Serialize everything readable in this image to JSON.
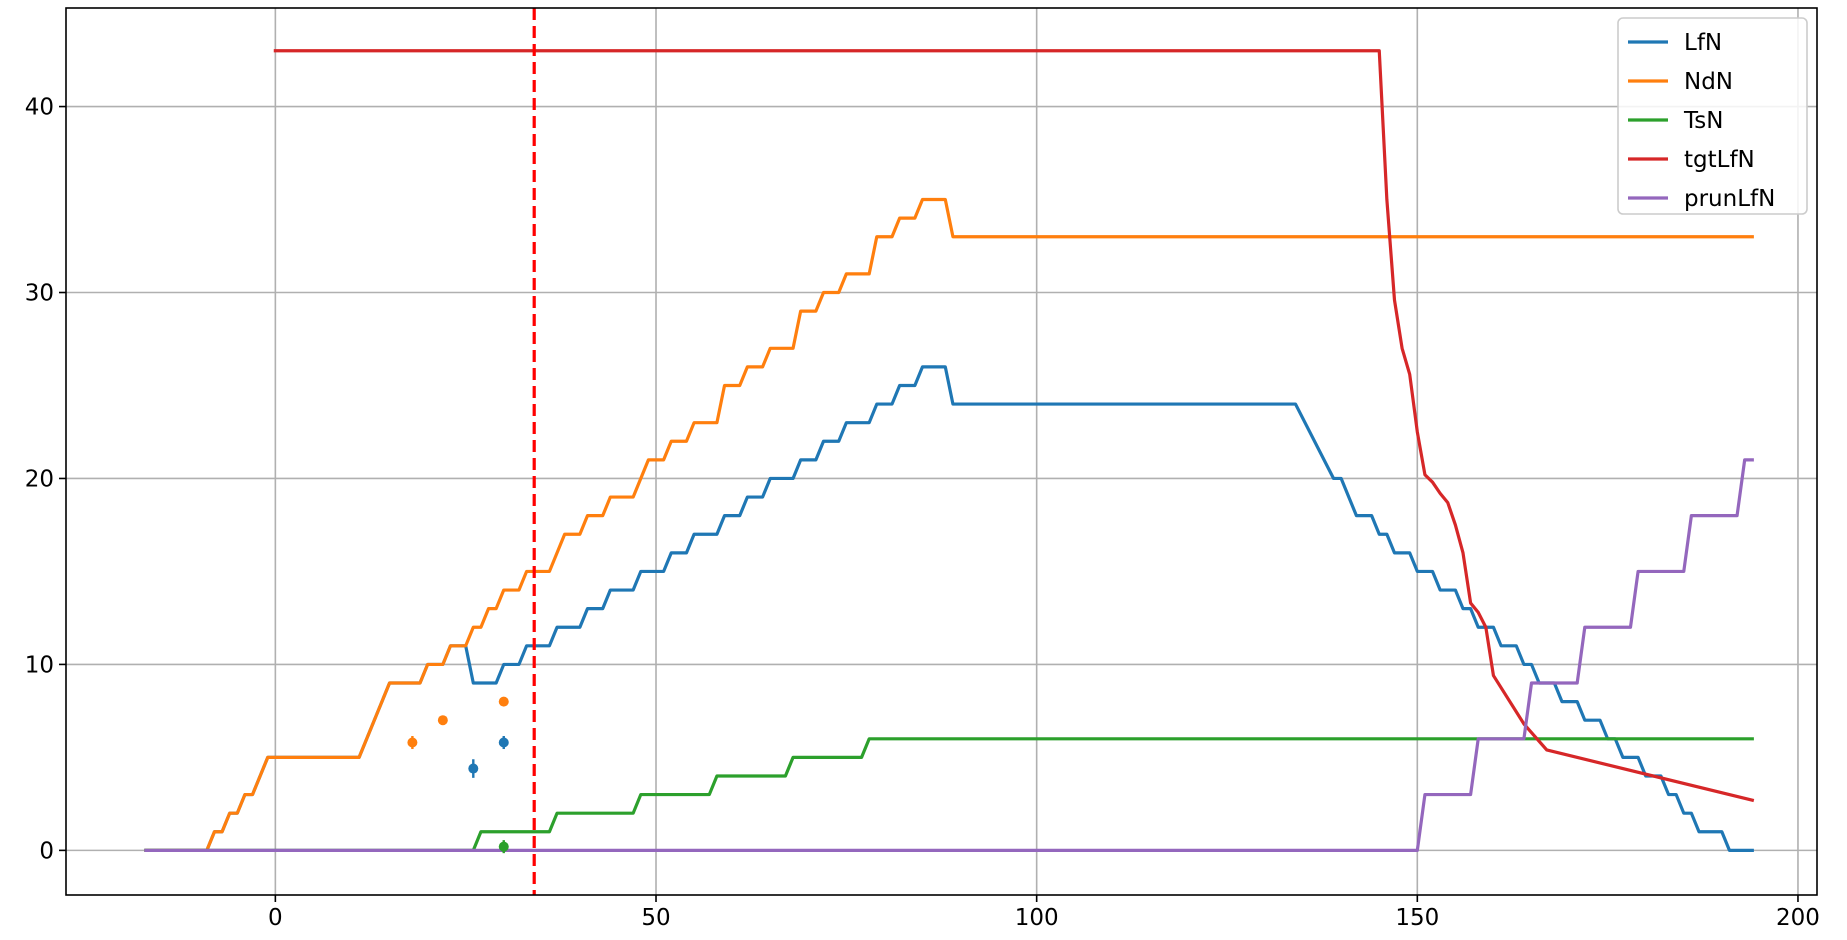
{
  "chart_data": {
    "type": "line",
    "title": "",
    "xlabel": "",
    "ylabel": "",
    "xlim": [
      -27.5,
      202.5
    ],
    "ylim": [
      -2.4,
      45.3
    ],
    "xticks": [
      0,
      50,
      100,
      150,
      200
    ],
    "yticks": [
      0,
      10,
      20,
      30,
      40
    ],
    "grid": true,
    "legend_position": "top-right",
    "vline": {
      "x": 34,
      "color": "#ff0000",
      "style": "dashed"
    },
    "series": [
      {
        "name": "LfN",
        "color": "#1f77b4",
        "points": [
          [
            -17,
            0
          ],
          [
            -9,
            0
          ],
          [
            -8,
            1
          ],
          [
            -7,
            1
          ],
          [
            -6,
            2
          ],
          [
            -5,
            2
          ],
          [
            -4,
            3
          ],
          [
            -3,
            3
          ],
          [
            -1,
            5
          ],
          [
            11,
            5
          ],
          [
            15,
            9
          ],
          [
            19,
            9
          ],
          [
            20,
            10
          ],
          [
            22,
            10
          ],
          [
            23,
            11
          ],
          [
            25,
            11
          ],
          [
            26,
            9
          ],
          [
            29,
            9
          ],
          [
            30,
            10
          ],
          [
            32,
            10
          ],
          [
            33,
            11
          ],
          [
            36,
            11
          ],
          [
            37,
            12
          ],
          [
            40,
            12
          ],
          [
            41,
            13
          ],
          [
            43,
            13
          ],
          [
            44,
            14
          ],
          [
            47,
            14
          ],
          [
            48,
            15
          ],
          [
            51,
            15
          ],
          [
            52,
            16
          ],
          [
            54,
            16
          ],
          [
            55,
            17
          ],
          [
            58,
            17
          ],
          [
            59,
            18
          ],
          [
            61,
            18
          ],
          [
            62,
            19
          ],
          [
            64,
            19
          ],
          [
            65,
            20
          ],
          [
            68,
            20
          ],
          [
            69,
            21
          ],
          [
            71,
            21
          ],
          [
            72,
            22
          ],
          [
            74,
            22
          ],
          [
            75,
            23
          ],
          [
            78,
            23
          ],
          [
            79,
            24
          ],
          [
            81,
            24
          ],
          [
            82,
            25
          ],
          [
            84,
            25
          ],
          [
            85,
            26
          ],
          [
            88,
            26
          ],
          [
            89,
            24
          ],
          [
            134,
            24
          ],
          [
            139,
            20
          ],
          [
            140,
            20
          ],
          [
            142,
            18
          ],
          [
            144,
            18
          ],
          [
            145,
            17
          ],
          [
            146,
            17
          ],
          [
            147,
            16
          ],
          [
            149,
            16
          ],
          [
            150,
            15
          ],
          [
            152,
            15
          ],
          [
            153,
            14
          ],
          [
            155,
            14
          ],
          [
            156,
            13
          ],
          [
            157,
            13
          ],
          [
            158,
            12
          ],
          [
            160,
            12
          ],
          [
            161,
            11
          ],
          [
            163,
            11
          ],
          [
            164,
            10
          ],
          [
            165,
            10
          ],
          [
            166,
            9
          ],
          [
            168,
            9
          ],
          [
            169,
            8
          ],
          [
            171,
            8
          ],
          [
            172,
            7
          ],
          [
            174,
            7
          ],
          [
            175,
            6
          ],
          [
            176,
            6
          ],
          [
            177,
            5
          ],
          [
            179,
            5
          ],
          [
            180,
            4
          ],
          [
            182,
            4
          ],
          [
            183,
            3
          ],
          [
            184,
            3
          ],
          [
            185,
            2
          ],
          [
            186,
            2
          ],
          [
            187,
            1
          ],
          [
            190,
            1
          ],
          [
            191,
            0
          ],
          [
            194,
            0
          ]
        ]
      },
      {
        "name": "NdN",
        "color": "#ff7f0e",
        "points": [
          [
            -17,
            0
          ],
          [
            -9,
            0
          ],
          [
            -8,
            1
          ],
          [
            -7,
            1
          ],
          [
            -6,
            2
          ],
          [
            -5,
            2
          ],
          [
            -4,
            3
          ],
          [
            -3,
            3
          ],
          [
            -1,
            5
          ],
          [
            11,
            5
          ],
          [
            15,
            9
          ],
          [
            19,
            9
          ],
          [
            20,
            10
          ],
          [
            22,
            10
          ],
          [
            23,
            11
          ],
          [
            25,
            11
          ],
          [
            26,
            12
          ],
          [
            27,
            12
          ],
          [
            28,
            13
          ],
          [
            29,
            13
          ],
          [
            30,
            14
          ],
          [
            32,
            14
          ],
          [
            33,
            15
          ],
          [
            36,
            15
          ],
          [
            38,
            17
          ],
          [
            40,
            17
          ],
          [
            41,
            18
          ],
          [
            43,
            18
          ],
          [
            44,
            19
          ],
          [
            47,
            19
          ],
          [
            49,
            21
          ],
          [
            51,
            21
          ],
          [
            52,
            22
          ],
          [
            54,
            22
          ],
          [
            55,
            23
          ],
          [
            58,
            23
          ],
          [
            59,
            25
          ],
          [
            61,
            25
          ],
          [
            62,
            26
          ],
          [
            64,
            26
          ],
          [
            65,
            27
          ],
          [
            68,
            27
          ],
          [
            69,
            29
          ],
          [
            71,
            29
          ],
          [
            72,
            30
          ],
          [
            74,
            30
          ],
          [
            75,
            31
          ],
          [
            78,
            31
          ],
          [
            79,
            33
          ],
          [
            81,
            33
          ],
          [
            82,
            34
          ],
          [
            84,
            34
          ],
          [
            85,
            35
          ],
          [
            88,
            35
          ],
          [
            89,
            33
          ],
          [
            194,
            33
          ]
        ]
      },
      {
        "name": "TsN",
        "color": "#2ca02c",
        "points": [
          [
            -17,
            0
          ],
          [
            26,
            0
          ],
          [
            27,
            1
          ],
          [
            36,
            1
          ],
          [
            37,
            2
          ],
          [
            47,
            2
          ],
          [
            48,
            3
          ],
          [
            57,
            3
          ],
          [
            58,
            4
          ],
          [
            67,
            4
          ],
          [
            68,
            5
          ],
          [
            77,
            5
          ],
          [
            78,
            6
          ],
          [
            194,
            6
          ]
        ]
      },
      {
        "name": "tgtLfN",
        "color": "#d62728",
        "points": [
          [
            0,
            43
          ],
          [
            145,
            43
          ],
          [
            146,
            35
          ],
          [
            147,
            29.6
          ],
          [
            148,
            27
          ],
          [
            149,
            25.6
          ],
          [
            150,
            22.5
          ],
          [
            151,
            20.2
          ],
          [
            152,
            19.8
          ],
          [
            153,
            19.2
          ],
          [
            154,
            18.7
          ],
          [
            155,
            17.5
          ],
          [
            156,
            16
          ],
          [
            157,
            13.3
          ],
          [
            158,
            12.8
          ],
          [
            159,
            12
          ],
          [
            160,
            9.4
          ],
          [
            164,
            6.8
          ],
          [
            167,
            5.4
          ],
          [
            194,
            2.7
          ]
        ]
      },
      {
        "name": "prunLfN",
        "color": "#9467bd",
        "points": [
          [
            -17,
            0
          ],
          [
            150,
            0
          ],
          [
            151,
            3
          ],
          [
            157,
            3
          ],
          [
            158,
            6
          ],
          [
            164,
            6
          ],
          [
            165,
            9
          ],
          [
            171,
            9
          ],
          [
            172,
            12
          ],
          [
            178,
            12
          ],
          [
            179,
            15
          ],
          [
            185,
            15
          ],
          [
            186,
            18
          ],
          [
            192,
            18
          ],
          [
            193,
            21
          ],
          [
            194,
            21
          ]
        ]
      }
    ],
    "markers": [
      {
        "series": "NdN",
        "x": 18,
        "y": 5.8,
        "err": 0.35
      },
      {
        "series": "NdN",
        "x": 22,
        "y": 7,
        "err": 0.15
      },
      {
        "series": "NdN",
        "x": 30,
        "y": 8,
        "err": 0.15
      },
      {
        "series": "LfN",
        "x": 26,
        "y": 4.4,
        "err": 0.5
      },
      {
        "series": "LfN",
        "x": 30,
        "y": 5.8,
        "err": 0.35
      },
      {
        "series": "TsN",
        "x": 30,
        "y": 0.2,
        "err": 0.35
      }
    ]
  }
}
